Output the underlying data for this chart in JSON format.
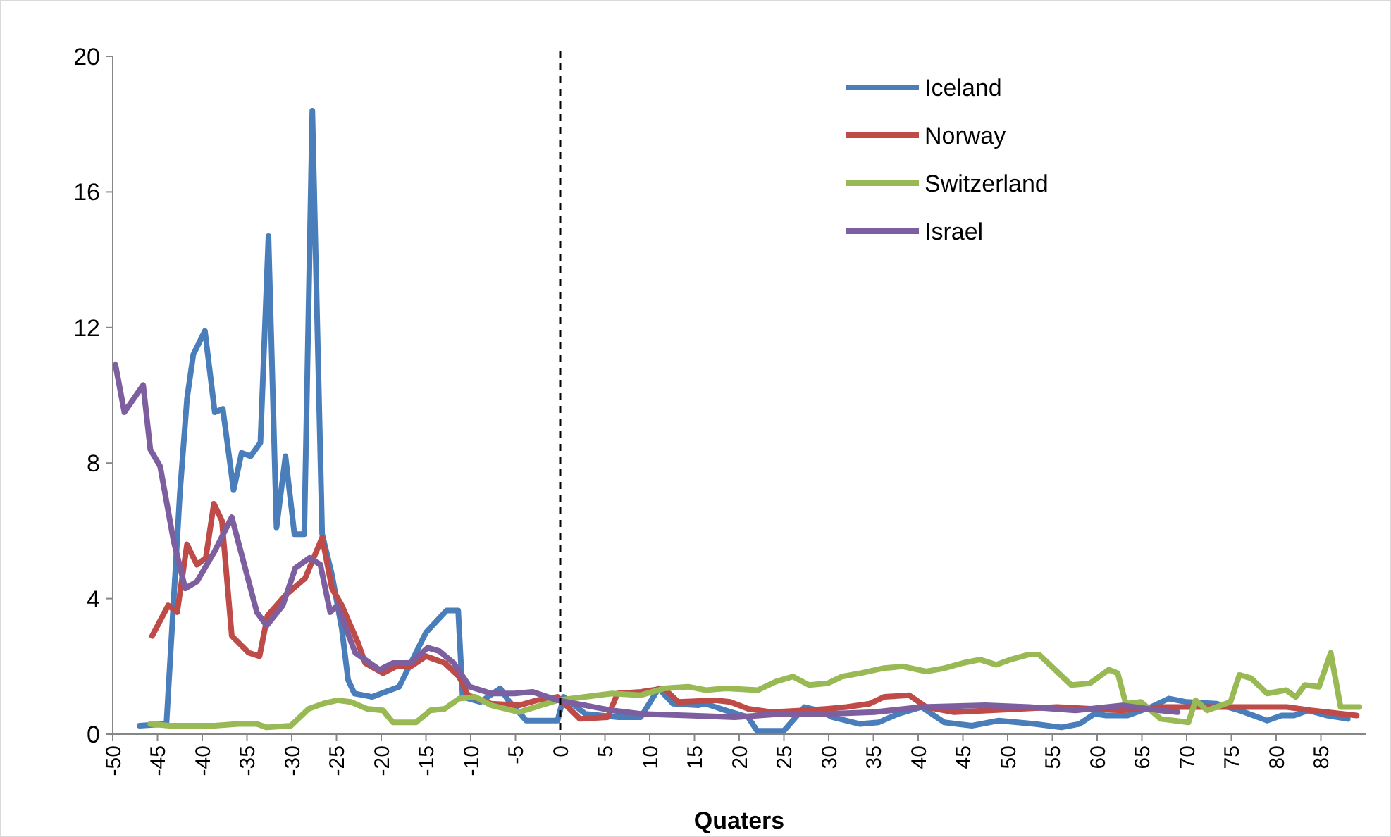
{
  "chart_data": {
    "type": "line",
    "xlabel": "Quaters",
    "xlim": [
      -50,
      90
    ],
    "ylim": [
      0,
      20
    ],
    "xticks": [
      -50,
      -45,
      -40,
      -35,
      -30,
      -25,
      -20,
      -15,
      -10,
      -5,
      0,
      5,
      10,
      15,
      20,
      25,
      30,
      35,
      40,
      45,
      50,
      55,
      60,
      65,
      70,
      75,
      80,
      85
    ],
    "yticks": [
      0,
      4,
      8,
      12,
      16,
      20
    ],
    "grid": false,
    "legend": "top right",
    "marker": "none",
    "line_style": "solid",
    "ref_lines": [
      {
        "axis": "x",
        "value": 0,
        "color": "#000000",
        "line_style": "dashed"
      }
    ],
    "series": [
      {
        "name": "Iceland",
        "color": "#4a7ebb",
        "x": [
          -47,
          -44,
          -42.5,
          -41.7,
          -41,
          -39.7,
          -38.6,
          -37.7,
          -36.5,
          -35.6,
          -34.6,
          -33.5,
          -32.6,
          -31.7,
          -30.7,
          -29.7,
          -28.6,
          -27.7,
          -26.6,
          -25.5,
          -24.4,
          -23.7,
          -23,
          -21,
          -18,
          -15,
          -12.7,
          -11.4,
          -10.9,
          -8.9,
          -6.7,
          -5.8,
          -3.8,
          -0.3,
          0.4,
          2.8,
          6.5,
          9,
          11,
          12.6,
          15.4,
          16.2,
          18.5,
          21,
          22,
          25,
          27.3,
          28.9,
          30.4,
          33.5,
          35.6,
          37.8,
          40.4,
          42.9,
          46,
          49,
          53,
          56,
          58,
          59.7,
          61,
          63.4,
          66,
          68,
          70,
          73.3,
          75.9,
          79,
          80.6,
          82,
          83.6,
          85.7,
          88
        ],
        "values": [
          0.25,
          0.3,
          7.1,
          9.9,
          11.2,
          11.9,
          9.5,
          9.6,
          7.2,
          8.3,
          8.2,
          8.6,
          14.7,
          6.1,
          8.2,
          5.9,
          5.9,
          18.4,
          5.9,
          4.7,
          3.1,
          1.6,
          1.2,
          1.1,
          1.4,
          3.0,
          3.65,
          3.65,
          1.1,
          0.95,
          1.35,
          1.0,
          0.4,
          0.4,
          1.1,
          0.6,
          0.5,
          0.5,
          1.35,
          0.9,
          0.85,
          0.9,
          0.7,
          0.5,
          0.1,
          0.1,
          0.8,
          0.7,
          0.5,
          0.3,
          0.35,
          0.6,
          0.8,
          0.35,
          0.25,
          0.4,
          0.3,
          0.2,
          0.3,
          0.6,
          0.55,
          0.55,
          0.8,
          1.05,
          0.95,
          0.9,
          0.7,
          0.4,
          0.55,
          0.55,
          0.7,
          0.55,
          0.45
        ]
      },
      {
        "name": "Norway",
        "color": "#be4b48",
        "x": [
          -45.6,
          -43.8,
          -42.8,
          -41.7,
          -40.6,
          -39.6,
          -38.7,
          -37.8,
          -36.7,
          -34.8,
          -33.6,
          -32.7,
          -30.7,
          -28.5,
          -26.6,
          -25.5,
          -24.4,
          -22.6,
          -21.8,
          -19.8,
          -18.3,
          -16.7,
          -15,
          -12.9,
          -11.3,
          -10.3,
          -7.7,
          -4.6,
          -2.6,
          -0.3,
          2.2,
          5.3,
          6.4,
          9,
          11.6,
          13.2,
          17.4,
          19,
          21,
          23.6,
          27.3,
          29.9,
          32,
          34.6,
          36.2,
          39,
          40.9,
          44,
          48,
          55.5,
          62.8,
          67,
          75.4,
          81.2,
          83.9,
          89
        ],
        "values": [
          2.9,
          3.8,
          3.6,
          5.6,
          5.0,
          5.2,
          6.8,
          6.3,
          2.9,
          2.4,
          2.3,
          3.5,
          4.1,
          4.6,
          5.8,
          4.3,
          3.8,
          2.7,
          2.1,
          1.8,
          2.0,
          2.0,
          2.3,
          2.1,
          1.7,
          1.15,
          0.9,
          0.85,
          1.0,
          1.1,
          0.45,
          0.5,
          1.2,
          1.25,
          1.35,
          0.95,
          1.0,
          0.95,
          0.75,
          0.65,
          0.7,
          0.75,
          0.8,
          0.9,
          1.1,
          1.15,
          0.8,
          0.65,
          0.7,
          0.8,
          0.7,
          0.8,
          0.8,
          0.8,
          0.7,
          0.55
        ]
      },
      {
        "name": "Switzerland",
        "color": "#98b954",
        "x": [
          -45.8,
          -43.7,
          -38.6,
          -36,
          -33.9,
          -32.8,
          -30.1,
          -28.1,
          -26.5,
          -24.9,
          -23.4,
          -21.6,
          -19.8,
          -18.7,
          -16.1,
          -14.5,
          -12.9,
          -11.3,
          -9.5,
          -7.7,
          -4.6,
          -0.3,
          2.8,
          5.8,
          9,
          11.6,
          14.3,
          16.3,
          18.5,
          22.1,
          24.1,
          26,
          27.8,
          29.9,
          31.5,
          33.6,
          36.2,
          38.3,
          40.9,
          43,
          45,
          46.9,
          48.7,
          50.3,
          52.4,
          53.5,
          57.1,
          59.2,
          61.3,
          62.3,
          63.2,
          64.9,
          67.1,
          70.2,
          71,
          72.3,
          74.9,
          75.9,
          77.2,
          79,
          81.1,
          82.2,
          83.2,
          84.8,
          86.1,
          87.2,
          89.3
        ],
        "values": [
          0.3,
          0.25,
          0.25,
          0.3,
          0.3,
          0.2,
          0.25,
          0.75,
          0.9,
          1.0,
          0.95,
          0.75,
          0.7,
          0.35,
          0.35,
          0.7,
          0.75,
          1.05,
          1.1,
          0.85,
          0.65,
          1.0,
          1.1,
          1.2,
          1.15,
          1.35,
          1.4,
          1.3,
          1.35,
          1.3,
          1.55,
          1.7,
          1.45,
          1.5,
          1.7,
          1.8,
          1.95,
          2.0,
          1.85,
          1.95,
          2.1,
          2.2,
          2.05,
          2.2,
          2.35,
          2.35,
          1.45,
          1.5,
          1.9,
          1.8,
          0.9,
          0.95,
          0.45,
          0.35,
          1.0,
          0.7,
          0.95,
          1.75,
          1.65,
          1.2,
          1.3,
          1.1,
          1.45,
          1.4,
          2.4,
          0.8,
          0.8
        ]
      },
      {
        "name": "Israel",
        "color": "#7d5fa0",
        "x": [
          -49.7,
          -48.7,
          -46.6,
          -45.8,
          -44.7,
          -43.2,
          -41.9,
          -40.6,
          -38.6,
          -36.7,
          -33.9,
          -32.8,
          -31,
          -29.6,
          -28,
          -26.8,
          -25.7,
          -24.9,
          -22.9,
          -20.2,
          -18.7,
          -16.7,
          -14.8,
          -13.5,
          -11.9,
          -10.1,
          -7.7,
          -5.1,
          -3.1,
          -0.3,
          2.8,
          5.8,
          9,
          14.3,
          19.5,
          24.7,
          29.9,
          35.1,
          40.4,
          47.5,
          52.4,
          57.6,
          62.8,
          67,
          69
        ],
        "values": [
          10.9,
          9.5,
          10.3,
          8.4,
          7.9,
          5.7,
          4.3,
          4.5,
          5.4,
          6.4,
          3.6,
          3.2,
          3.8,
          4.9,
          5.2,
          5.0,
          3.6,
          3.8,
          2.4,
          1.9,
          2.1,
          2.1,
          2.55,
          2.45,
          2.1,
          1.4,
          1.2,
          1.2,
          1.25,
          1.0,
          0.85,
          0.7,
          0.6,
          0.55,
          0.5,
          0.6,
          0.6,
          0.65,
          0.8,
          0.85,
          0.8,
          0.7,
          0.85,
          0.7,
          0.65
        ]
      }
    ]
  }
}
